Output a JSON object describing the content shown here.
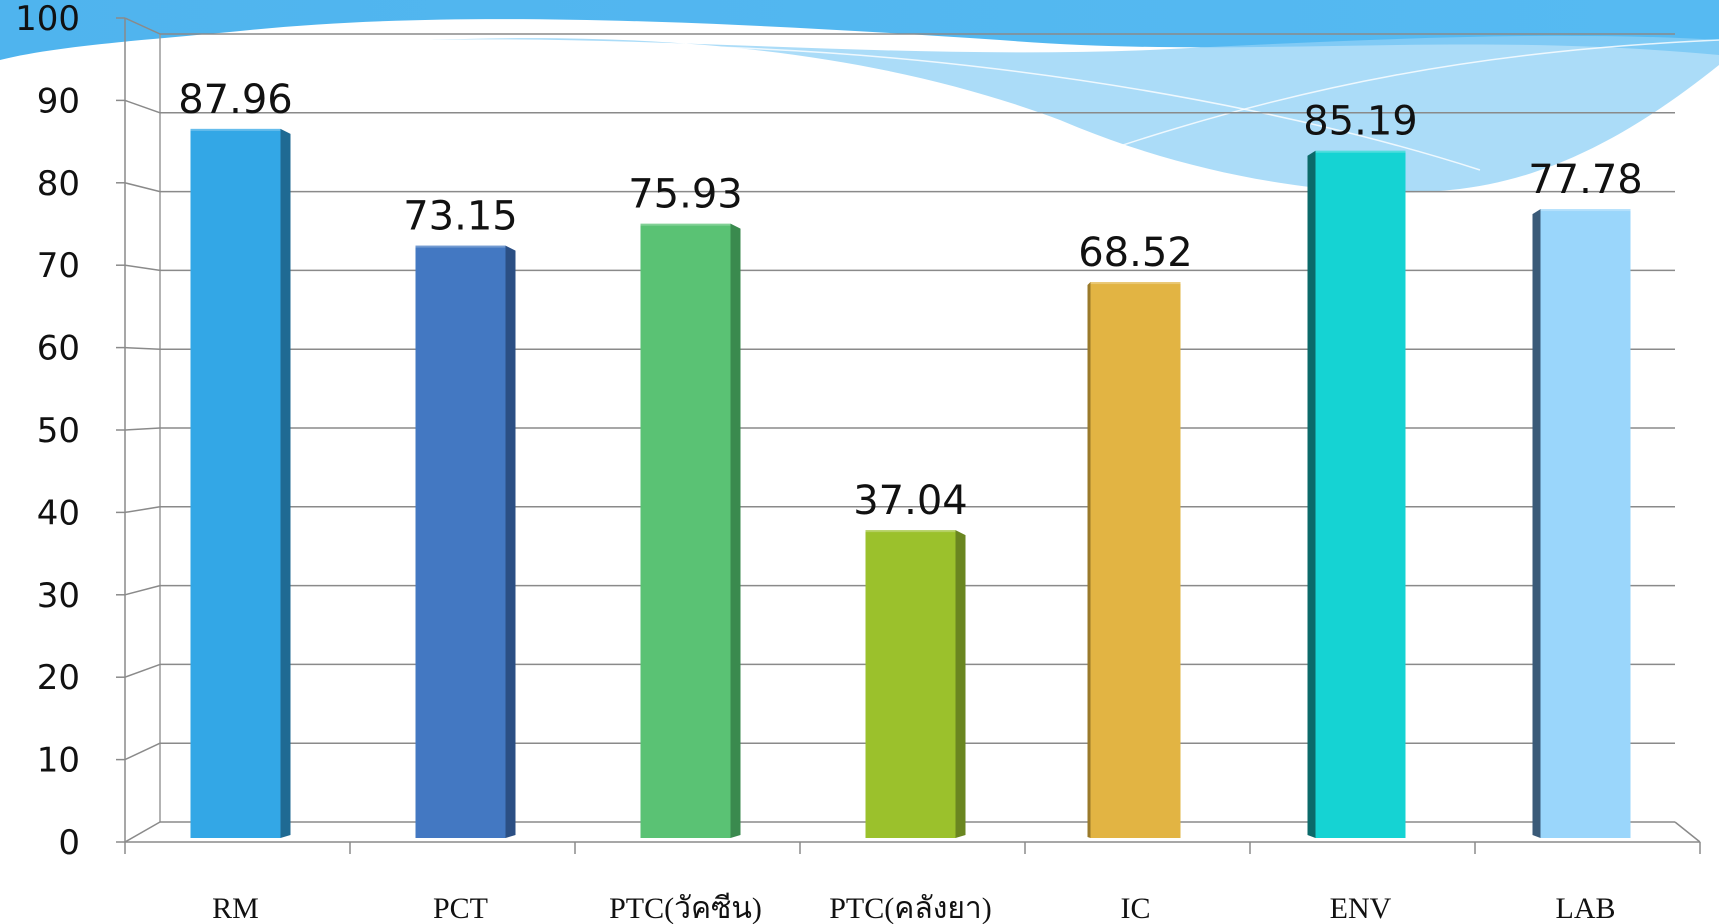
{
  "chart_data": {
    "type": "bar",
    "title": "",
    "xlabel": "",
    "ylabel": "",
    "ylim": [
      0,
      100
    ],
    "yticks": [
      0,
      10,
      20,
      30,
      40,
      50,
      60,
      70,
      80,
      90,
      100
    ],
    "grid": true,
    "legend": "none",
    "categories": [
      "RM",
      "PCT",
      "PTC(วัคซีน)",
      "PTC(คลังยา)",
      "IC",
      "ENV",
      "LAB"
    ],
    "values": [
      87.96,
      73.15,
      75.93,
      37.04,
      68.52,
      85.19,
      77.78
    ],
    "data_labels": [
      "87.96",
      "73.15",
      "75.93",
      "37.04",
      "68.52",
      "85.19",
      "77.78"
    ],
    "colors": [
      "#33a7e6",
      "#4378c2",
      "#5ac274",
      "#9bc12c",
      "#e2b443",
      "#15d3d3",
      "#9ad6fb"
    ],
    "side_colors": [
      "#1f6a93",
      "#2b4f84",
      "#3a8a4e",
      "#6a8620",
      "#9a7a2a",
      "#0b6a6a",
      "#3a5a78"
    ]
  }
}
